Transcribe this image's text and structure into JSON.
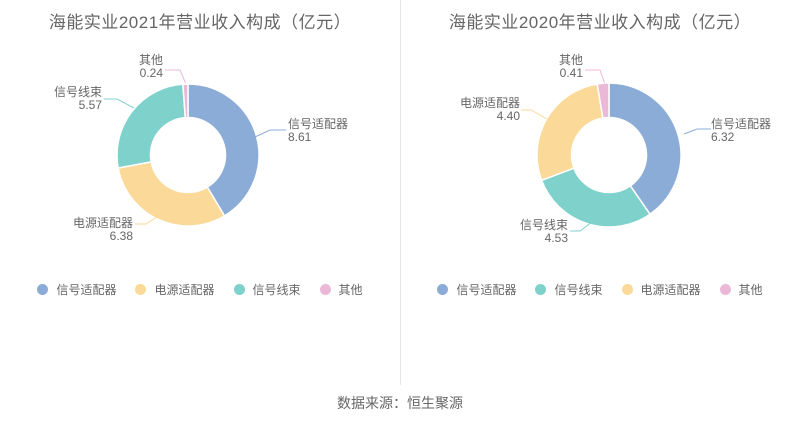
{
  "footer": {
    "text": "数据来源：恒生聚源"
  },
  "chart_data": [
    {
      "type": "pie",
      "donut": true,
      "title": "海能实业2021年营业收入构成（亿元）",
      "unit": "亿元",
      "legend_position": "bottom",
      "series": [
        {
          "name": "信号适配器",
          "value": 8.61,
          "label": "8.61",
          "color": "#8CACD8"
        },
        {
          "name": "电源适配器",
          "value": 6.38,
          "label": "6.38",
          "color": "#FBD998"
        },
        {
          "name": "信号线束",
          "value": 5.57,
          "label": "5.57",
          "color": "#7FD1CC"
        },
        {
          "name": "其他",
          "value": 0.24,
          "label": "0.24",
          "color": "#ECB8D8"
        }
      ],
      "legend": [
        "信号适配器",
        "电源适配器",
        "信号线束",
        "其他"
      ]
    },
    {
      "type": "pie",
      "donut": true,
      "title": "海能实业2020年营业收入构成（亿元）",
      "unit": "亿元",
      "legend_position": "bottom",
      "series": [
        {
          "name": "信号适配器",
          "value": 6.32,
          "label": "6.32",
          "color": "#8CACD8"
        },
        {
          "name": "信号线束",
          "value": 4.53,
          "label": "4.53",
          "color": "#7FD1CC"
        },
        {
          "name": "电源适配器",
          "value": 4.4,
          "label": "4.40",
          "color": "#FBD998"
        },
        {
          "name": "其他",
          "value": 0.41,
          "label": "0.41",
          "color": "#ECB8D8"
        }
      ],
      "legend": [
        "信号适配器",
        "信号线束",
        "电源适配器",
        "其他"
      ]
    }
  ]
}
